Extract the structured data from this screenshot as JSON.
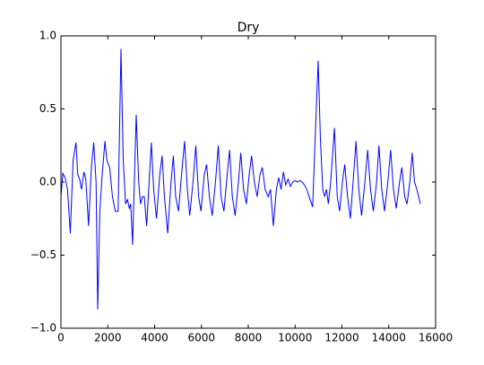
{
  "chart_data": {
    "type": "line",
    "title": "Dry",
    "color": "#0000ff",
    "x": [
      0,
      80,
      180,
      280,
      400,
      520,
      640,
      720,
      800,
      880,
      980,
      1060,
      1180,
      1300,
      1400,
      1500,
      1570,
      1660,
      1760,
      1880,
      1960,
      2080,
      2200,
      2320,
      2440,
      2565,
      2660,
      2760,
      2840,
      2920,
      2980,
      3060,
      3215,
      3320,
      3400,
      3480,
      3560,
      3660,
      3860,
      3960,
      4080,
      4220,
      4320,
      4420,
      4560,
      4700,
      4800,
      4900,
      5020,
      5150,
      5280,
      5400,
      5500,
      5640,
      5760,
      5880,
      5980,
      6120,
      6220,
      6340,
      6460,
      6600,
      6720,
      6840,
      6960,
      7100,
      7200,
      7320,
      7440,
      7580,
      7680,
      7800,
      7920,
      8040,
      8140,
      8260,
      8380,
      8500,
      8600,
      8720,
      8850,
      8950,
      9070,
      9200,
      9300,
      9400,
      9500,
      9600,
      9700,
      9800,
      9900,
      10000,
      10100,
      10200,
      10300,
      10400,
      10500,
      10600,
      10750,
      10880,
      10985,
      11080,
      11180,
      11260,
      11340,
      11420,
      11520,
      11680,
      11800,
      11900,
      12020,
      12120,
      12240,
      12360,
      12500,
      12600,
      12720,
      12840,
      12980,
      13100,
      13220,
      13340,
      13480,
      13580,
      13700,
      13820,
      13960,
      14080,
      14200,
      14320,
      14460,
      14560,
      14680,
      14780,
      14900,
      15000,
      15100,
      15200,
      15350
    ],
    "values": [
      -0.1,
      0.06,
      0.03,
      -0.05,
      -0.35,
      0.15,
      0.27,
      0.05,
      0.02,
      -0.05,
      0.07,
      0.02,
      -0.3,
      0.1,
      0.27,
      0.0,
      -0.87,
      -0.2,
      0.05,
      0.28,
      0.15,
      0.1,
      -0.1,
      -0.2,
      -0.2,
      0.91,
      0.15,
      -0.15,
      -0.12,
      -0.18,
      -0.15,
      -0.43,
      0.46,
      0.0,
      -0.15,
      -0.1,
      -0.1,
      -0.3,
      0.27,
      -0.05,
      -0.25,
      0.05,
      0.18,
      -0.1,
      -0.35,
      0.0,
      0.18,
      -0.1,
      -0.2,
      0.05,
      0.28,
      -0.05,
      -0.23,
      0.0,
      0.25,
      -0.1,
      -0.2,
      0.05,
      0.12,
      -0.1,
      -0.23,
      0.0,
      0.25,
      -0.1,
      -0.2,
      0.05,
      0.22,
      -0.1,
      -0.23,
      0.0,
      0.2,
      -0.05,
      -0.15,
      0.05,
      0.18,
      0.0,
      -0.1,
      0.05,
      0.1,
      -0.05,
      -0.1,
      -0.05,
      -0.3,
      -0.05,
      0.03,
      -0.05,
      0.07,
      -0.02,
      0.02,
      -0.03,
      0.0,
      0.01,
      0.0,
      0.01,
      0.0,
      -0.02,
      -0.05,
      -0.1,
      -0.17,
      0.4,
      0.83,
      0.3,
      -0.05,
      -0.1,
      -0.05,
      -0.15,
      0.0,
      0.37,
      -0.1,
      -0.2,
      0.0,
      0.12,
      -0.1,
      -0.25,
      0.05,
      0.28,
      -0.05,
      -0.23,
      0.0,
      0.22,
      -0.05,
      -0.2,
      0.0,
      0.25,
      -0.05,
      -0.2,
      0.0,
      0.22,
      -0.05,
      -0.18,
      0.0,
      0.1,
      -0.1,
      -0.15,
      0.0,
      0.2,
      0.0,
      -0.05,
      -0.15
    ],
    "xlim": [
      0,
      16000
    ],
    "xticks": [
      0,
      2000,
      4000,
      6000,
      8000,
      10000,
      12000,
      14000,
      16000
    ],
    "ylim": [
      -1,
      1
    ],
    "yticks": [
      {
        "value": -1,
        "label": "−1.0"
      },
      {
        "value": -0.5,
        "label": "−0.5"
      },
      {
        "value": 0,
        "label": "0.0"
      },
      0.5,
      {
        "value": 1,
        "label": "1.0"
      }
    ]
  }
}
